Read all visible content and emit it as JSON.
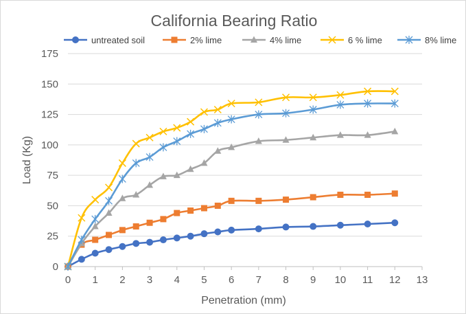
{
  "chart_data": {
    "type": "line",
    "title": "California Bearing Ratio",
    "xlabel": "Penetration (mm)",
    "ylabel": "Load  (Kg)",
    "xlim": [
      0,
      13
    ],
    "ylim": [
      0,
      175
    ],
    "xticks": [
      0,
      1,
      2,
      3,
      4,
      5,
      6,
      7,
      8,
      9,
      10,
      11,
      12,
      13
    ],
    "yticks": [
      0,
      25,
      50,
      75,
      100,
      125,
      150,
      175
    ],
    "grid": true,
    "legend_position": "top",
    "series": [
      {
        "name": "untreated soil",
        "color": "#4472c4",
        "marker": "circle",
        "x": [
          0,
          0.5,
          1,
          1.5,
          2,
          2.5,
          3,
          3.5,
          4,
          4.5,
          5,
          5.5,
          6,
          7,
          8,
          9,
          10,
          11,
          12
        ],
        "values": [
          0,
          6,
          11,
          14,
          16.5,
          19,
          20,
          22,
          23.5,
          25,
          27,
          28.5,
          30,
          31,
          32.5,
          33,
          34,
          35,
          36
        ]
      },
      {
        "name": "2% lime",
        "color": "#ed7d31",
        "marker": "square",
        "x": [
          0,
          0.5,
          1,
          1.5,
          2,
          2.5,
          3,
          3.5,
          4,
          4.5,
          5,
          5.5,
          6,
          7,
          8,
          9,
          10,
          11,
          12
        ],
        "values": [
          0,
          18,
          22,
          26,
          30,
          33,
          36,
          39,
          44,
          46,
          48,
          50,
          54,
          54,
          55,
          57,
          59,
          59,
          60
        ]
      },
      {
        "name": "4% lime",
        "color": "#a5a5a5",
        "marker": "triangle",
        "x": [
          0,
          0.5,
          1,
          1.5,
          2,
          2.5,
          3,
          3.5,
          4,
          4.5,
          5,
          5.5,
          6,
          7,
          8,
          9,
          10,
          11,
          12
        ],
        "values": [
          0,
          19,
          33,
          44,
          56,
          59,
          67,
          74,
          75,
          80,
          85,
          95,
          98,
          103,
          104,
          106,
          108,
          108,
          111
        ]
      },
      {
        "name": "6 % lime",
        "color": "#ffc000",
        "marker": "x",
        "x": [
          0,
          0.5,
          1,
          1.5,
          2,
          2.5,
          3,
          3.5,
          4,
          4.5,
          5,
          5.5,
          6,
          7,
          8,
          9,
          10,
          11,
          12
        ],
        "values": [
          0,
          40,
          55,
          65,
          85,
          101,
          106,
          111,
          114,
          119,
          127,
          129,
          134,
          135,
          139,
          139,
          141,
          144,
          144
        ]
      },
      {
        "name": "8% lime",
        "color": "#5b9bd5",
        "marker": "star",
        "x": [
          0,
          0.5,
          1,
          1.5,
          2,
          2.5,
          3,
          3.5,
          4,
          4.5,
          5,
          5.5,
          6,
          7,
          8,
          9,
          10,
          11,
          12
        ],
        "values": [
          0,
          22,
          39,
          54,
          72,
          85,
          90,
          98,
          103,
          109,
          113,
          118,
          121,
          125,
          126,
          129,
          133,
          134,
          134
        ]
      }
    ]
  }
}
